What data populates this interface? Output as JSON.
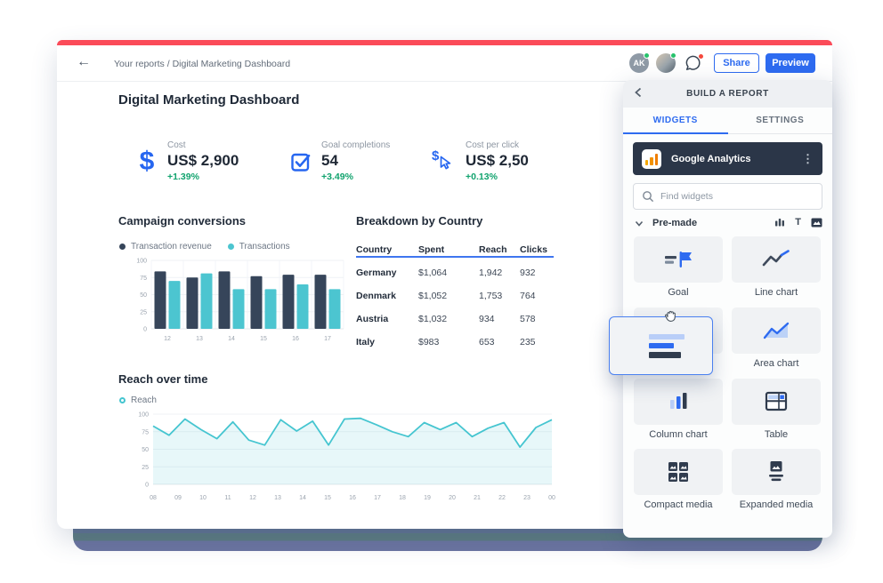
{
  "colors": {
    "accent_blue": "#2e6bf0",
    "brand_red": "#fb4b59",
    "navy": "#36455a",
    "teal": "#4cc5d0",
    "positive_green": "#11a36e",
    "source_card_bg": "#2b3648"
  },
  "topbar": {
    "breadcrumb": "Your reports / Digital Marketing Dashboard",
    "avatar_initials": "AK",
    "share_label": "Share",
    "preview_label": "Preview"
  },
  "page": {
    "title": "Digital Marketing Dashboard"
  },
  "kpis": [
    {
      "label": "Cost",
      "value": "US$ 2,900",
      "delta": "+1.39%"
    },
    {
      "label": "Goal completions",
      "value": "54",
      "delta": "+3.49%"
    },
    {
      "label": "Cost per click",
      "value": "US$ 2,50",
      "delta": "+0.13%"
    }
  ],
  "chart_data": [
    {
      "type": "bar",
      "title": "Campaign conversions",
      "categories": [
        "12",
        "13",
        "14",
        "15",
        "16",
        "17"
      ],
      "series": [
        {
          "name": "Transaction revenue",
          "color": "#36455a",
          "values": [
            84,
            75,
            84,
            77,
            79,
            79
          ]
        },
        {
          "name": "Transactions",
          "color": "#4cc5d0",
          "values": [
            70,
            81,
            58,
            58,
            65,
            58
          ]
        }
      ],
      "ylim": [
        0,
        100
      ],
      "yticks": [
        0,
        25,
        50,
        75,
        100
      ],
      "legend_position": "top",
      "grid": true
    },
    {
      "type": "table",
      "title": "Breakdown by Country",
      "columns": [
        "Country",
        "Spent",
        "Reach",
        "Clicks"
      ],
      "rows": [
        [
          "Germany",
          "$1,064",
          "1,942",
          "932"
        ],
        [
          "Denmark",
          "$1,052",
          "1,753",
          "764"
        ],
        [
          "Austria",
          "$1,032",
          "934",
          "578"
        ],
        [
          "Italy",
          "$983",
          "653",
          "235"
        ]
      ]
    },
    {
      "type": "area",
      "title": "Reach over time",
      "legend": [
        "Reach"
      ],
      "color": "#45c5d0",
      "x_ticks": [
        "08",
        "09",
        "10",
        "11",
        "12",
        "13",
        "14",
        "15",
        "16",
        "17",
        "18",
        "19",
        "20",
        "21",
        "22",
        "23",
        "00"
      ],
      "values": [
        83,
        70,
        93,
        78,
        65,
        89,
        63,
        56,
        92,
        76,
        90,
        56,
        93,
        94,
        85,
        75,
        68,
        88,
        78,
        88,
        68,
        80,
        88,
        53,
        81,
        92
      ],
      "ylim": [
        0,
        100
      ],
      "yticks": [
        0,
        25,
        50,
        75,
        100
      ],
      "legend_position": "top",
      "grid": true
    }
  ],
  "sidebar": {
    "header": "BUILD A REPORT",
    "tabs": [
      {
        "label": "WIDGETS"
      },
      {
        "label": "SETTINGS"
      }
    ],
    "source": {
      "name": "Google Analytics"
    },
    "search_placeholder": "Find widgets",
    "premade_label": "Pre-made",
    "widgets": [
      {
        "label": "Goal"
      },
      {
        "label": "Line chart"
      },
      {
        "label": "Area chart"
      },
      {
        "label": "Column chart"
      },
      {
        "label": "Table"
      },
      {
        "label": "Compact media"
      },
      {
        "label": "Expanded media"
      }
    ]
  }
}
